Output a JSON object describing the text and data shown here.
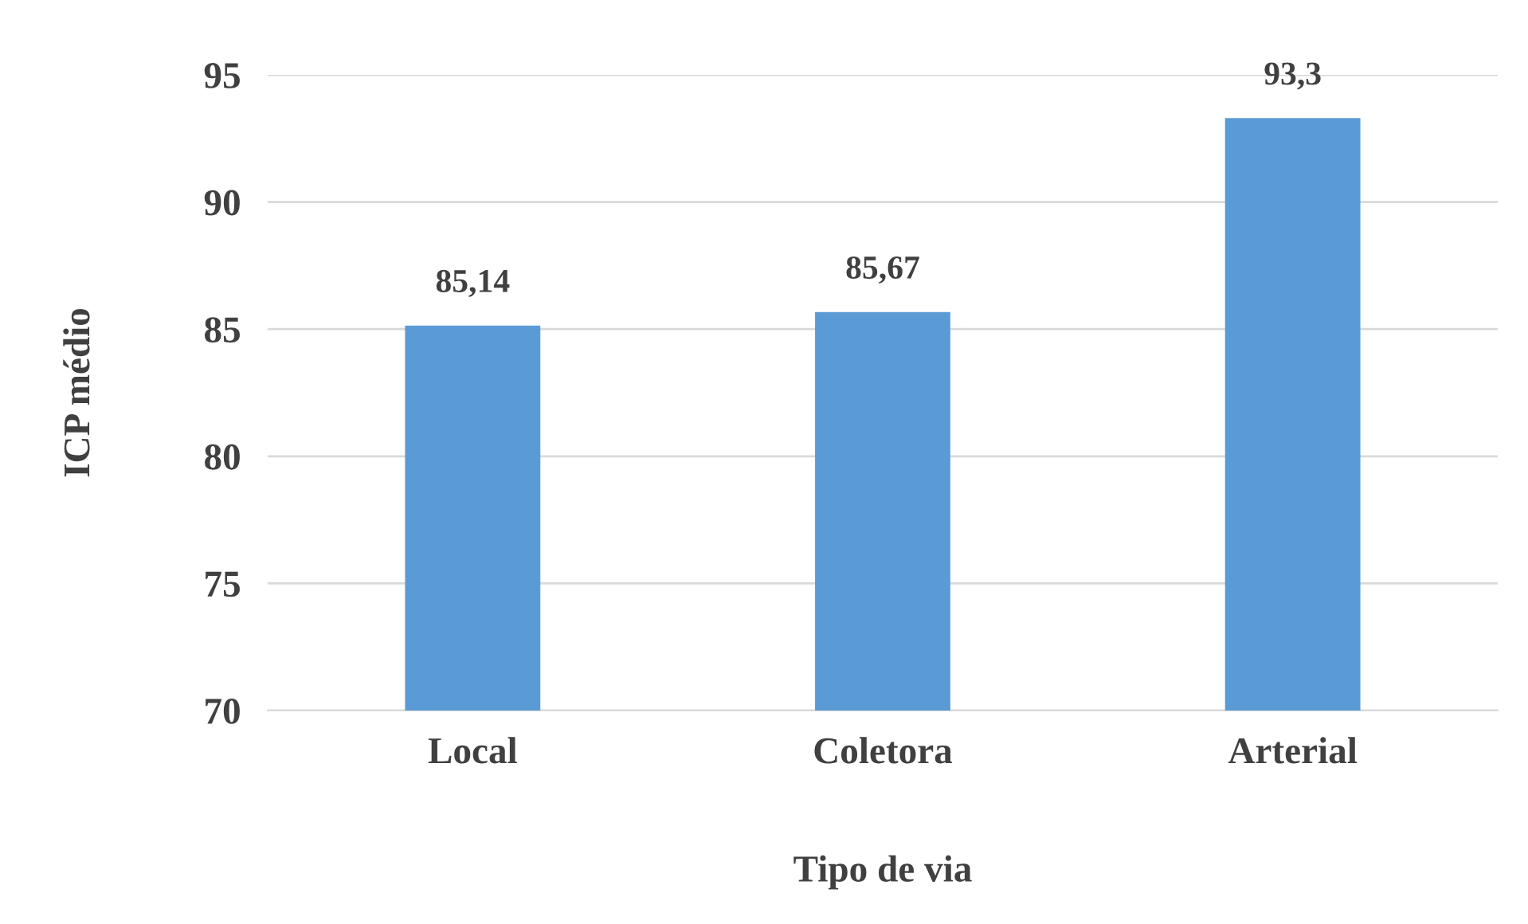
{
  "chart_data": {
    "type": "bar",
    "xlabel": "Tipo de via",
    "ylabel": "ICP médio",
    "categories": [
      "Local",
      "Coletora",
      "Arterial"
    ],
    "values": [
      85.14,
      85.67,
      93.3
    ],
    "value_labels": [
      "85,14",
      "85,67",
      "93,3"
    ],
    "color": "#5b9bd5",
    "ylim": [
      70,
      95
    ],
    "yticks": [
      70,
      75,
      80,
      85,
      90,
      95
    ],
    "grid": "y",
    "legend": false
  }
}
